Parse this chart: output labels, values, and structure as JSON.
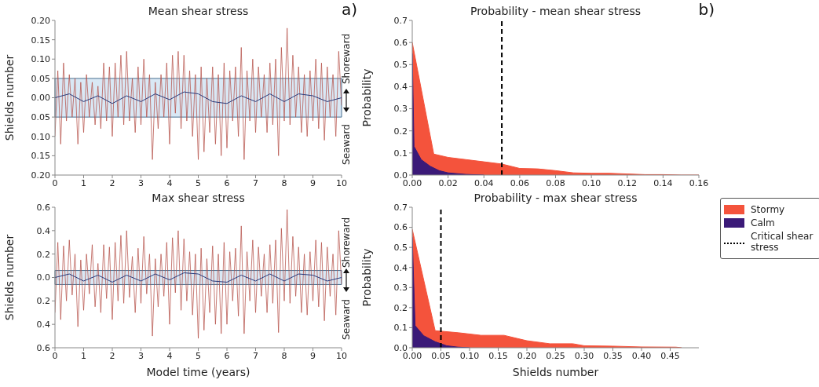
{
  "chart_data": [
    {
      "type": "line",
      "title": "Mean shear stress",
      "ylabel": "Shields number",
      "annotations": [
        "a)",
        "Shoreward",
        "Seaward"
      ],
      "xlim": [
        0,
        10
      ],
      "xticks": [
        0,
        1,
        2,
        3,
        4,
        5,
        6,
        7,
        8,
        9,
        10
      ],
      "ylim": [
        -0.2,
        0.2
      ],
      "yticks": [
        {
          "value": -0.2,
          "label": "0.20"
        },
        {
          "value": -0.15,
          "label": "0.15"
        },
        {
          "value": -0.1,
          "label": "0.10"
        },
        {
          "value": -0.05,
          "label": "0.05"
        },
        {
          "value": 0,
          "label": "0.00"
        },
        {
          "value": 0.05,
          "label": "0.05"
        },
        {
          "value": 0.1,
          "label": "0.10"
        },
        {
          "value": 0.15,
          "label": "0.15"
        },
        {
          "value": 0.2,
          "label": "0.20"
        }
      ],
      "bands": [
        {
          "axis": "y",
          "from": -0.05,
          "to": 0.05,
          "color": "#cfe2f3"
        }
      ],
      "series": [
        {
          "color": "#b5524a",
          "x": [
            0,
            0.1,
            0.2,
            0.3,
            0.4,
            0.5,
            0.6,
            0.7,
            0.8,
            0.9,
            1,
            1.1,
            1.2,
            1.3,
            1.4,
            1.5,
            1.6,
            1.7,
            1.8,
            1.9,
            2,
            2.1,
            2.2,
            2.3,
            2.4,
            2.5,
            2.6,
            2.7,
            2.8,
            2.9,
            3,
            3.1,
            3.2,
            3.3,
            3.4,
            3.5,
            3.6,
            3.7,
            3.8,
            3.9,
            4,
            4.1,
            4.2,
            4.3,
            4.4,
            4.5,
            4.6,
            4.7,
            4.8,
            4.9,
            5,
            5.1,
            5.2,
            5.3,
            5.4,
            5.5,
            5.6,
            5.7,
            5.8,
            5.9,
            6,
            6.1,
            6.2,
            6.3,
            6.4,
            6.5,
            6.6,
            6.7,
            6.8,
            6.9,
            7,
            7.1,
            7.2,
            7.3,
            7.4,
            7.5,
            7.6,
            7.7,
            7.8,
            7.9,
            8,
            8.1,
            8.2,
            8.3,
            8.4,
            8.5,
            8.6,
            8.7,
            8.8,
            8.9,
            9,
            9.1,
            9.2,
            9.3,
            9.4,
            9.5,
            9.6,
            9.7,
            9.8,
            9.9,
            10
          ],
          "values": [
            -0.1,
            0.07,
            -0.12,
            0.09,
            -0.06,
            0.06,
            -0.05,
            0.05,
            -0.12,
            0.04,
            -0.09,
            0.06,
            -0.05,
            0.04,
            -0.07,
            0.03,
            -0.08,
            0.09,
            -0.06,
            0.08,
            -0.1,
            0.09,
            -0.05,
            0.11,
            -0.07,
            0.12,
            -0.06,
            0.05,
            -0.09,
            0.08,
            -0.07,
            0.1,
            -0.05,
            0.06,
            -0.16,
            0.04,
            -0.08,
            0.06,
            -0.05,
            0.09,
            -0.12,
            0.11,
            -0.04,
            0.12,
            -0.08,
            0.11,
            -0.06,
            0.07,
            -0.1,
            0.06,
            -0.16,
            0.08,
            -0.14,
            0.05,
            -0.09,
            0.08,
            -0.12,
            0.06,
            -0.15,
            0.09,
            -0.13,
            0.07,
            -0.06,
            0.08,
            -0.1,
            0.13,
            -0.16,
            0.07,
            -0.06,
            0.1,
            -0.09,
            0.08,
            -0.05,
            0.06,
            -0.09,
            0.09,
            -0.07,
            0.1,
            -0.15,
            0.13,
            -0.06,
            0.18,
            -0.07,
            0.11,
            -0.05,
            0.08,
            -0.09,
            0.06,
            -0.1,
            0.07,
            -0.06,
            0.1,
            -0.08,
            0.09,
            -0.11,
            0.08,
            -0.05,
            0.06,
            -0.1,
            0.12,
            -0.02
          ]
        },
        {
          "color": "#27397a",
          "x": [
            0,
            0.5,
            1,
            1.5,
            2,
            2.5,
            3,
            3.5,
            4,
            4.5,
            5,
            5.5,
            6,
            6.5,
            7,
            7.5,
            8,
            8.5,
            9,
            9.5,
            10
          ],
          "values": [
            0,
            0.01,
            -0.01,
            0.005,
            -0.015,
            0.005,
            -0.01,
            0.01,
            -0.005,
            0.015,
            0.01,
            -0.01,
            -0.015,
            0.005,
            -0.01,
            0.01,
            -0.01,
            0.01,
            0.005,
            -0.01,
            0
          ]
        }
      ]
    },
    {
      "type": "area",
      "title": "Probability - mean shear stress",
      "ylabel": "Probability",
      "annotations": [
        "b)"
      ],
      "legend": "right",
      "xlim": [
        0,
        0.16
      ],
      "xticks": [
        {
          "value": 0,
          "label": "0.00"
        },
        {
          "value": 0.02,
          "label": "0.02"
        },
        {
          "value": 0.04,
          "label": "0.04"
        },
        {
          "value": 0.06,
          "label": "0.06"
        },
        {
          "value": 0.08,
          "label": "0.08"
        },
        {
          "value": 0.1,
          "label": "0.10"
        },
        {
          "value": 0.12,
          "label": "0.12"
        },
        {
          "value": 0.14,
          "label": "0.14"
        },
        {
          "value": 0.16,
          "label": "0.16"
        }
      ],
      "ylim": [
        0,
        0.7
      ],
      "yticks": [
        {
          "value": 0,
          "label": "0.0"
        },
        {
          "value": 0.1,
          "label": "0.1"
        },
        {
          "value": 0.2,
          "label": "0.2"
        },
        {
          "value": 0.3,
          "label": "0.3"
        },
        {
          "value": 0.4,
          "label": "0.4"
        },
        {
          "value": 0.5,
          "label": "0.5"
        },
        {
          "value": 0.6,
          "label": "0.6"
        },
        {
          "value": 0.7,
          "label": "0.7"
        }
      ],
      "ref_lines": [
        {
          "axis": "x",
          "value": 0.05,
          "label": "Critical shear stress",
          "color": "#000000",
          "line_style": "dashed"
        }
      ],
      "series": [
        {
          "name": "Stormy",
          "color": "#f4533c",
          "x": [
            0,
            0.012,
            0.02,
            0.03,
            0.04,
            0.05,
            0.06,
            0.07,
            0.08,
            0.09,
            0.1,
            0.11,
            0.12,
            0.13,
            0.14,
            0.15,
            0.16
          ],
          "values": [
            0.6,
            0.095,
            0.08,
            0.07,
            0.06,
            0.05,
            0.03,
            0.028,
            0.02,
            0.01,
            0.008,
            0.008,
            0.005,
            0.002,
            0.002,
            0,
            0
          ]
        },
        {
          "name": "Calm",
          "color": "#3b1a78",
          "x": [
            0,
            0.001,
            0.005,
            0.01,
            0.015,
            0.02,
            0.03,
            0.04
          ],
          "values": [
            0.55,
            0.13,
            0.07,
            0.04,
            0.02,
            0.01,
            0.003,
            0
          ]
        }
      ]
    },
    {
      "type": "line",
      "title": "Max shear stress",
      "xlabel": "Model time (years)",
      "ylabel": "Shields number",
      "annotations": [
        "Shoreward",
        "Seaward"
      ],
      "xlim": [
        0,
        10
      ],
      "xticks": [
        0,
        1,
        2,
        3,
        4,
        5,
        6,
        7,
        8,
        9,
        10
      ],
      "ylim": [
        -0.6,
        0.6
      ],
      "yticks": [
        {
          "value": -0.6,
          "label": "0.6"
        },
        {
          "value": -0.4,
          "label": "0.4"
        },
        {
          "value": -0.2,
          "label": "0.2"
        },
        {
          "value": 0,
          "label": "0.0"
        },
        {
          "value": 0.2,
          "label": "0.2"
        },
        {
          "value": 0.4,
          "label": "0.4"
        },
        {
          "value": 0.6,
          "label": "0.6"
        }
      ],
      "bands": [
        {
          "axis": "y",
          "from": -0.06,
          "to": 0.06,
          "color": "#cfe2f3"
        }
      ],
      "series": [
        {
          "color": "#b5524a",
          "x": [
            0,
            0.1,
            0.2,
            0.3,
            0.4,
            0.5,
            0.6,
            0.7,
            0.8,
            0.9,
            1,
            1.1,
            1.2,
            1.3,
            1.4,
            1.5,
            1.6,
            1.7,
            1.8,
            1.9,
            2,
            2.1,
            2.2,
            2.3,
            2.4,
            2.5,
            2.6,
            2.7,
            2.8,
            2.9,
            3,
            3.1,
            3.2,
            3.3,
            3.4,
            3.5,
            3.6,
            3.7,
            3.8,
            3.9,
            4,
            4.1,
            4.2,
            4.3,
            4.4,
            4.5,
            4.6,
            4.7,
            4.8,
            4.9,
            5,
            5.1,
            5.2,
            5.3,
            5.4,
            5.5,
            5.6,
            5.7,
            5.8,
            5.9,
            6,
            6.1,
            6.2,
            6.3,
            6.4,
            6.5,
            6.6,
            6.7,
            6.8,
            6.9,
            7,
            7.1,
            7.2,
            7.3,
            7.4,
            7.5,
            7.6,
            7.7,
            7.8,
            7.9,
            8,
            8.1,
            8.2,
            8.3,
            8.4,
            8.5,
            8.6,
            8.7,
            8.8,
            8.9,
            9,
            9.1,
            9.2,
            9.3,
            9.4,
            9.5,
            9.6,
            9.7,
            9.8,
            9.9,
            10
          ],
          "values": [
            -0.3,
            0.3,
            -0.36,
            0.27,
            -0.2,
            0.32,
            -0.15,
            0.2,
            -0.42,
            0.15,
            -0.28,
            0.2,
            -0.14,
            0.28,
            -0.25,
            0.12,
            -0.3,
            0.28,
            -0.18,
            0.26,
            -0.36,
            0.3,
            -0.2,
            0.36,
            -0.22,
            0.4,
            -0.17,
            0.18,
            -0.3,
            0.25,
            -0.22,
            0.35,
            -0.14,
            0.2,
            -0.5,
            0.16,
            -0.25,
            0.2,
            -0.16,
            0.3,
            -0.4,
            0.34,
            -0.13,
            0.4,
            -0.28,
            0.33,
            -0.2,
            0.22,
            -0.32,
            0.2,
            -0.52,
            0.25,
            -0.45,
            0.16,
            -0.3,
            0.27,
            -0.4,
            0.2,
            -0.48,
            0.3,
            -0.4,
            0.22,
            -0.2,
            0.25,
            -0.33,
            0.44,
            -0.48,
            0.22,
            -0.2,
            0.32,
            -0.3,
            0.26,
            -0.16,
            0.2,
            -0.3,
            0.28,
            -0.22,
            0.32,
            -0.47,
            0.42,
            -0.2,
            0.58,
            -0.22,
            0.35,
            -0.16,
            0.26,
            -0.3,
            0.2,
            -0.32,
            0.22,
            -0.2,
            0.32,
            -0.25,
            0.3,
            -0.37,
            0.26,
            -0.16,
            0.2,
            -0.32,
            0.4,
            -0.06
          ]
        },
        {
          "color": "#27397a",
          "x": [
            0,
            0.5,
            1,
            1.5,
            2,
            2.5,
            3,
            3.5,
            4,
            4.5,
            5,
            5.5,
            6,
            6.5,
            7,
            7.5,
            8,
            8.5,
            9,
            9.5,
            10
          ],
          "values": [
            0,
            0.03,
            -0.03,
            0.02,
            -0.04,
            0.02,
            -0.03,
            0.03,
            -0.02,
            0.04,
            0.03,
            -0.03,
            -0.04,
            0.02,
            -0.03,
            0.03,
            -0.03,
            0.03,
            0.02,
            -0.03,
            0
          ]
        }
      ]
    },
    {
      "type": "area",
      "title": "Probability - max shear stress",
      "xlabel": "Shields number",
      "ylabel": "Probability",
      "xlim": [
        0,
        0.5
      ],
      "xticks": [
        {
          "value": 0,
          "label": "0.00"
        },
        {
          "value": 0.05,
          "label": "0.05"
        },
        {
          "value": 0.1,
          "label": "0.10"
        },
        {
          "value": 0.15,
          "label": "0.15"
        },
        {
          "value": 0.2,
          "label": "0.20"
        },
        {
          "value": 0.25,
          "label": "0.25"
        },
        {
          "value": 0.3,
          "label": "0.30"
        },
        {
          "value": 0.35,
          "label": "0.35"
        },
        {
          "value": 0.4,
          "label": "0.40"
        },
        {
          "value": 0.45,
          "label": "0.45"
        }
      ],
      "ylim": [
        0,
        0.7
      ],
      "yticks": [
        {
          "value": 0,
          "label": "0.0"
        },
        {
          "value": 0.1,
          "label": "0.1"
        },
        {
          "value": 0.2,
          "label": "0.2"
        },
        {
          "value": 0.3,
          "label": "0.3"
        },
        {
          "value": 0.4,
          "label": "0.4"
        },
        {
          "value": 0.5,
          "label": "0.5"
        },
        {
          "value": 0.6,
          "label": "0.6"
        },
        {
          "value": 0.7,
          "label": "0.7"
        }
      ],
      "ref_lines": [
        {
          "axis": "x",
          "value": 0.05,
          "color": "#000000",
          "line_style": "dashed"
        }
      ],
      "series": [
        {
          "color": "#f4533c",
          "x": [
            0,
            0.04,
            0.08,
            0.12,
            0.16,
            0.2,
            0.24,
            0.28,
            0.3,
            0.35,
            0.4,
            0.46,
            0.47
          ],
          "values": [
            0.59,
            0.085,
            0.075,
            0.062,
            0.062,
            0.035,
            0.02,
            0.02,
            0.01,
            0.008,
            0.004,
            0.003,
            0
          ]
        },
        {
          "color": "#3b1a78",
          "x": [
            0,
            0.005,
            0.02,
            0.04,
            0.06,
            0.08,
            0.1
          ],
          "values": [
            0.55,
            0.11,
            0.06,
            0.03,
            0.01,
            0.003,
            0
          ]
        }
      ]
    }
  ]
}
